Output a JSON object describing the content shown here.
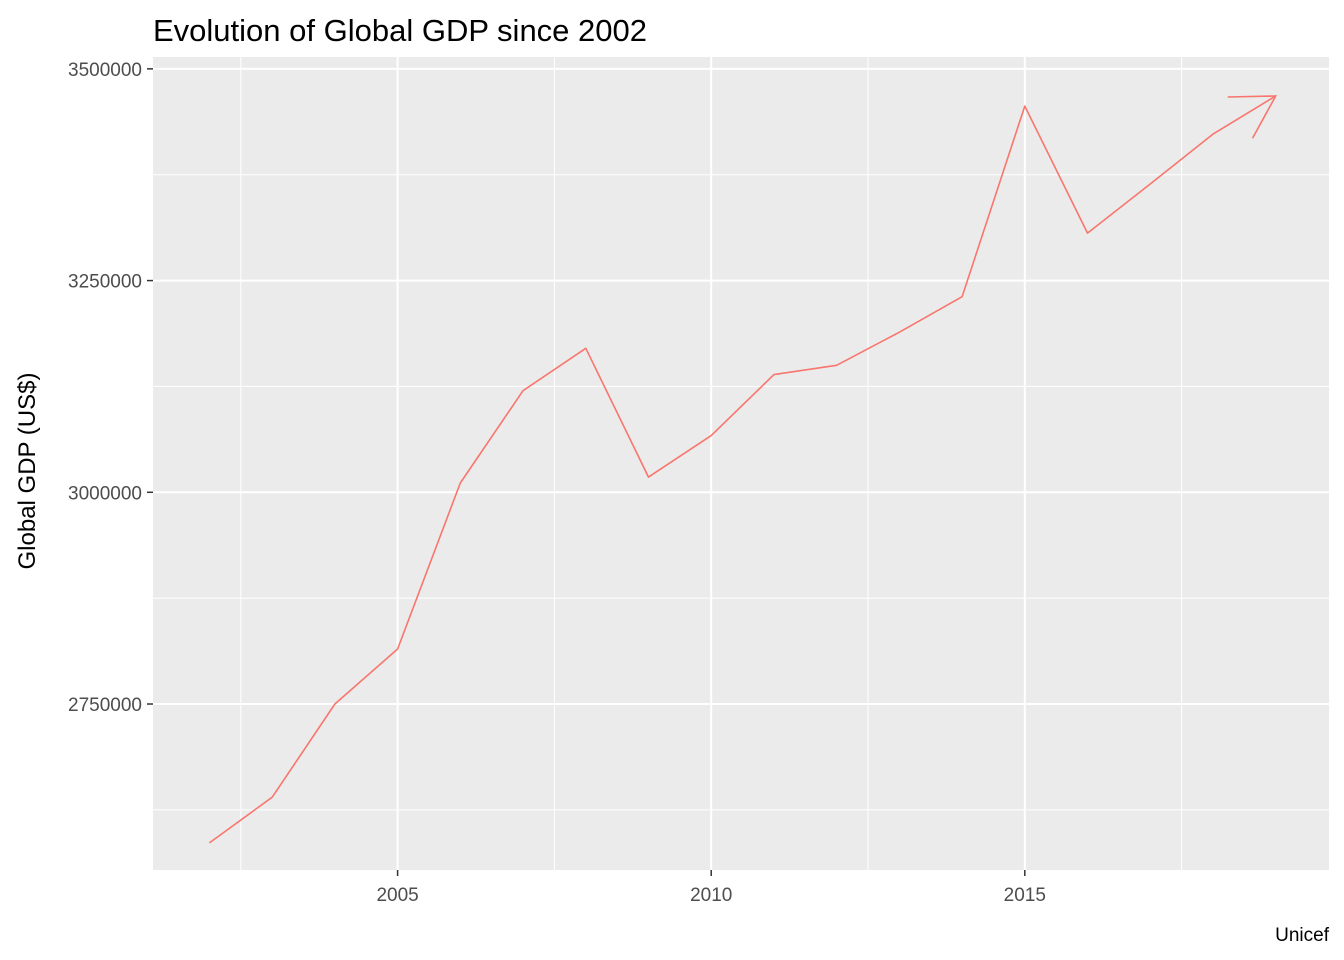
{
  "chart_data": {
    "type": "line",
    "title": "Evolution of Global GDP since 2002",
    "xlabel": "",
    "ylabel": "Global GDP (US$)",
    "caption": "Unicef",
    "x_ticks": [
      2005,
      2010,
      2015
    ],
    "x_tick_labels": [
      "2005",
      "2010",
      "2015"
    ],
    "y_ticks": [
      2750000,
      3000000,
      3250000,
      3500000
    ],
    "y_tick_labels": [
      "2750000",
      "3000000",
      "3250000",
      "3500000"
    ],
    "xlim": [
      2001.1,
      2019.85
    ],
    "ylim": [
      2554000,
      3514000
    ],
    "grid": true,
    "legend": "none",
    "line_color": "#f8766d",
    "end_arrow": true,
    "series": [
      {
        "x": [
          2002,
          2003,
          2004,
          2005,
          2006,
          2007,
          2008,
          2009,
          2010,
          2011,
          2012,
          2013,
          2014,
          2015,
          2016,
          2017,
          2018,
          2019
        ],
        "values": [
          2586000,
          2640000,
          2750000,
          2815000,
          3011000,
          3120000,
          3170000,
          3018000,
          3067000,
          3139000,
          3150000,
          3189000,
          3231000,
          3456000,
          3306000,
          3364000,
          3423000,
          3468000
        ]
      }
    ]
  }
}
